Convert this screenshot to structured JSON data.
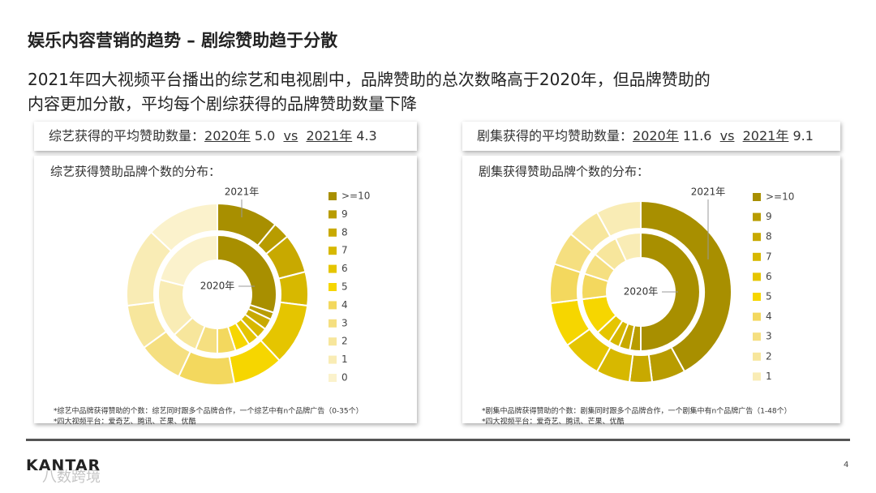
{
  "header": {
    "title": "娱乐内容营销的趋势 – 剧综赞助趋于分散",
    "subtitle_lines": [
      "2021年四大视频平台播出的综艺和电视剧中，品牌赞助的总次数略高于2020年，但品牌赞助的",
      "内容更加分散，平均每个剧综获得的品牌赞助数量下降"
    ]
  },
  "chart_data": [
    {
      "type": "donut",
      "title": "综艺获得赞助品牌个数的分布：",
      "summary": {
        "label": "综艺获得的平均赞助数量：",
        "year_a": "2020年",
        "value_a": "5.0",
        "vs": "vs",
        "year_b": "2021年",
        "value_b": "4.3"
      },
      "categories": [
        ">=10",
        "9",
        "8",
        "7",
        "6",
        "5",
        "4",
        "3",
        "2",
        "1",
        "0"
      ],
      "colors": [
        "#a88f00",
        "#b89c00",
        "#c8a900",
        "#d7b800",
        "#e5c500",
        "#f6d600",
        "#f3d85e",
        "#f5df80",
        "#f7e69c",
        "#f9ecb5",
        "#fbf2cc"
      ],
      "series": [
        {
          "name": "2021年",
          "values": [
            11,
            3,
            7,
            6,
            11,
            9,
            10,
            8,
            8,
            14,
            13
          ]
        },
        {
          "name": "2020年",
          "values": [
            30,
            2,
            3,
            3,
            3,
            4,
            5,
            6,
            7,
            16,
            21
          ]
        }
      ],
      "notes": [
        "*综艺中品牌获得赞助的个数：综艺同时跟多个品牌合作，一个综艺中有n个品牌广告（0-35个）",
        "*四大视频平台：爱奇艺、腾讯、芒果、优酷"
      ]
    },
    {
      "type": "donut",
      "title": "剧集获得赞助品牌个数的分布：",
      "summary": {
        "label": "剧集获得的平均赞助数量：",
        "year_a": "2020年",
        "value_a": "11.6",
        "vs": "vs",
        "year_b": "2021年",
        "value_b": "9.1"
      },
      "categories": [
        ">=10",
        "9",
        "8",
        "7",
        "6",
        "5",
        "4",
        "3",
        "2",
        "1"
      ],
      "colors": [
        "#a88f00",
        "#b89c00",
        "#c8a900",
        "#d7b800",
        "#e5c500",
        "#f6d600",
        "#f3d85e",
        "#f5df80",
        "#f7e69c",
        "#f9ecb5"
      ],
      "series": [
        {
          "name": "2021年",
          "values": [
            42,
            6,
            4,
            6,
            7,
            8,
            7,
            6,
            6,
            8
          ]
        },
        {
          "name": "2020年",
          "values": [
            50,
            3,
            3,
            3,
            4,
            10,
            7,
            6,
            7,
            7
          ]
        }
      ],
      "notes": [
        "*剧集中品牌获得赞助的个数：剧集同时跟多个品牌合作，一个剧集中有n个品牌广告（1-48个）",
        "*四大视频平台：爱奇艺、腾讯、芒果、优酷"
      ]
    }
  ],
  "footer": {
    "logo": "KANTAR",
    "page": "4",
    "watermark": "八数跨境"
  }
}
